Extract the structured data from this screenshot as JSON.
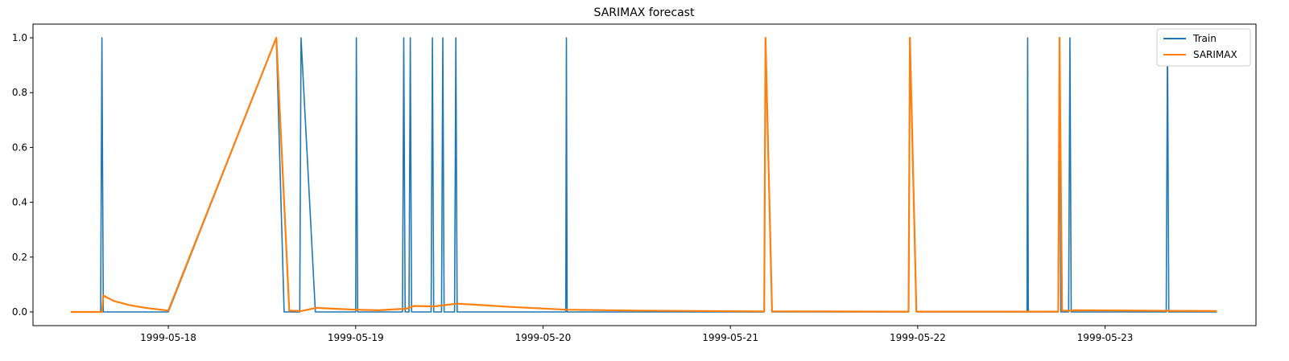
{
  "chart_data": {
    "type": "line",
    "title": "SARIMAX forecast",
    "xlabel": "",
    "ylabel": "",
    "x_type": "datetime",
    "xlim": [
      "1999-05-17 06:40",
      "1999-05-23 19:20"
    ],
    "ylim": [
      -0.05,
      1.05
    ],
    "x_ticks": [
      "1999-05-18",
      "1999-05-19",
      "1999-05-20",
      "1999-05-21",
      "1999-05-22",
      "1999-05-23"
    ],
    "y_ticks": [
      "0.0",
      "0.2",
      "0.4",
      "0.6",
      "0.8",
      "1.0"
    ],
    "grid": false,
    "legend_position": "top-right",
    "series": [
      {
        "name": "Train",
        "color": "#1f77b4",
        "points": [
          [
            "1999-05-17 11:30",
            0.0
          ],
          [
            "1999-05-17 15:20",
            0.0
          ],
          [
            "1999-05-17 15:30",
            1.0
          ],
          [
            "1999-05-17 15:40",
            0.0
          ],
          [
            "1999-05-18 00:00",
            0.0
          ],
          [
            "1999-05-18 13:50",
            1.0
          ],
          [
            "1999-05-18 14:50",
            0.0
          ],
          [
            "1999-05-18 16:50",
            0.0
          ],
          [
            "1999-05-18 17:00",
            1.0
          ],
          [
            "1999-05-18 18:50",
            0.0
          ],
          [
            "1999-05-19 00:00",
            0.0
          ],
          [
            "1999-05-19 00:05",
            1.0
          ],
          [
            "1999-05-19 00:15",
            0.0
          ],
          [
            "1999-05-19 06:00",
            0.0
          ],
          [
            "1999-05-19 06:10",
            1.0
          ],
          [
            "1999-05-19 06:20",
            0.0
          ],
          [
            "1999-05-19 06:50",
            0.0
          ],
          [
            "1999-05-19 07:00",
            1.0
          ],
          [
            "1999-05-19 07:10",
            0.0
          ],
          [
            "1999-05-19 09:40",
            0.0
          ],
          [
            "1999-05-19 09:50",
            1.0
          ],
          [
            "1999-05-19 10:00",
            0.0
          ],
          [
            "1999-05-19 11:00",
            0.0
          ],
          [
            "1999-05-19 11:10",
            1.0
          ],
          [
            "1999-05-19 11:20",
            0.0
          ],
          [
            "1999-05-19 12:40",
            0.0
          ],
          [
            "1999-05-19 12:50",
            1.0
          ],
          [
            "1999-05-19 13:00",
            0.0
          ],
          [
            "1999-05-20 02:55",
            0.0
          ],
          [
            "1999-05-20 03:00",
            1.0
          ],
          [
            "1999-05-20 03:05",
            0.0
          ],
          [
            "1999-05-21 04:20",
            0.0
          ],
          [
            "1999-05-21 04:30",
            1.0
          ],
          [
            "1999-05-21 05:20",
            0.0
          ],
          [
            "1999-05-21 22:50",
            0.0
          ],
          [
            "1999-05-21 23:00",
            1.0
          ],
          [
            "1999-05-21 23:50",
            0.0
          ],
          [
            "1999-05-22 14:00",
            0.0
          ],
          [
            "1999-05-22 14:05",
            1.0
          ],
          [
            "1999-05-22 14:10",
            0.0
          ],
          [
            "1999-05-22 18:00",
            0.0
          ],
          [
            "1999-05-22 18:10",
            1.0
          ],
          [
            "1999-05-22 18:20",
            0.0
          ],
          [
            "1999-05-22 19:20",
            0.0
          ],
          [
            "1999-05-22 19:30",
            1.0
          ],
          [
            "1999-05-22 19:40",
            0.0
          ],
          [
            "1999-05-23 07:50",
            0.0
          ],
          [
            "1999-05-23 08:00",
            1.0
          ],
          [
            "1999-05-23 08:10",
            0.0
          ],
          [
            "1999-05-23 14:20",
            0.0
          ]
        ]
      },
      {
        "name": "SARIMAX",
        "color": "#ff7f0e",
        "points": [
          [
            "1999-05-17 11:30",
            0.0
          ],
          [
            "1999-05-17 15:30",
            0.0
          ],
          [
            "1999-05-17 15:40",
            0.06
          ],
          [
            "1999-05-17 17:00",
            0.04
          ],
          [
            "1999-05-17 19:00",
            0.025
          ],
          [
            "1999-05-17 21:00",
            0.015
          ],
          [
            "1999-05-18 00:00",
            0.005
          ],
          [
            "1999-05-18 13:50",
            1.0
          ],
          [
            "1999-05-18 15:30",
            0.005
          ],
          [
            "1999-05-18 17:00",
            0.003
          ],
          [
            "1999-05-18 19:00",
            0.015
          ],
          [
            "1999-05-18 21:00",
            0.012
          ],
          [
            "1999-05-19 00:00",
            0.008
          ],
          [
            "1999-05-19 03:00",
            0.006
          ],
          [
            "1999-05-19 06:30",
            0.012
          ],
          [
            "1999-05-19 07:30",
            0.022
          ],
          [
            "1999-05-19 10:00",
            0.02
          ],
          [
            "1999-05-19 13:00",
            0.03
          ],
          [
            "1999-05-19 16:00",
            0.025
          ],
          [
            "1999-05-19 20:00",
            0.018
          ],
          [
            "1999-05-20 03:00",
            0.008
          ],
          [
            "1999-05-20 12:00",
            0.005
          ],
          [
            "1999-05-21 04:20",
            0.002
          ],
          [
            "1999-05-21 04:30",
            1.0
          ],
          [
            "1999-05-21 05:20",
            0.002
          ],
          [
            "1999-05-21 22:50",
            0.001
          ],
          [
            "1999-05-21 23:00",
            1.0
          ],
          [
            "1999-05-21 23:50",
            0.001
          ],
          [
            "1999-05-22 18:00",
            0.001
          ],
          [
            "1999-05-22 18:10",
            1.0
          ],
          [
            "1999-05-22 18:30",
            0.005
          ],
          [
            "1999-05-22 19:30",
            0.004
          ],
          [
            "1999-05-22 20:00",
            0.006
          ],
          [
            "1999-05-23 08:00",
            0.004
          ],
          [
            "1999-05-23 14:20",
            0.003
          ]
        ]
      }
    ]
  }
}
